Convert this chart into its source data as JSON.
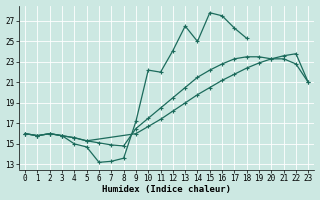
{
  "xlabel": "Humidex (Indice chaleur)",
  "bg_color": "#cce8e2",
  "grid_color": "#ffffff",
  "line_color": "#1c6b5c",
  "xlim": [
    -0.5,
    23.5
  ],
  "ylim": [
    12.5,
    28.5
  ],
  "yticks": [
    13,
    15,
    17,
    19,
    21,
    23,
    25,
    27
  ],
  "xticks": [
    0,
    1,
    2,
    3,
    4,
    5,
    6,
    7,
    8,
    9,
    10,
    11,
    12,
    13,
    14,
    15,
    16,
    17,
    18,
    19,
    20,
    21,
    22,
    23
  ],
  "line1_x": [
    0,
    1,
    2,
    3,
    4,
    5,
    6,
    7,
    8,
    9,
    10,
    11,
    12,
    13,
    14,
    15,
    16,
    17,
    18
  ],
  "line1_y": [
    16.0,
    15.8,
    16.0,
    15.8,
    15.0,
    14.7,
    13.2,
    13.3,
    13.6,
    17.2,
    22.2,
    22.0,
    24.1,
    26.5,
    25.0,
    27.8,
    27.5,
    26.3,
    25.3
  ],
  "line2_x": [
    0,
    1,
    2,
    3,
    4,
    5,
    6,
    7,
    8,
    9,
    10,
    11,
    12,
    13,
    14,
    15,
    16,
    17,
    18,
    19,
    20,
    21,
    22,
    23
  ],
  "line2_y": [
    16.0,
    15.8,
    16.0,
    15.8,
    15.6,
    15.3,
    15.1,
    14.9,
    14.8,
    16.5,
    17.5,
    18.5,
    19.5,
    20.5,
    21.5,
    22.2,
    22.8,
    23.3,
    23.5,
    23.5,
    23.3,
    23.3,
    22.8,
    21.0
  ],
  "line3_x": [
    0,
    1,
    2,
    3,
    4,
    5,
    9,
    10,
    11,
    12,
    13,
    14,
    15,
    16,
    17,
    18,
    19,
    20,
    21,
    22,
    23
  ],
  "line3_y": [
    16.0,
    15.8,
    16.0,
    15.8,
    15.6,
    15.3,
    16.0,
    16.7,
    17.4,
    18.2,
    19.0,
    19.8,
    20.5,
    21.2,
    21.8,
    22.4,
    22.9,
    23.3,
    23.6,
    23.8,
    21.0
  ],
  "label_fontsize": 5.5,
  "tick_fontsize": 5.5,
  "xlabel_fontsize": 6.5
}
